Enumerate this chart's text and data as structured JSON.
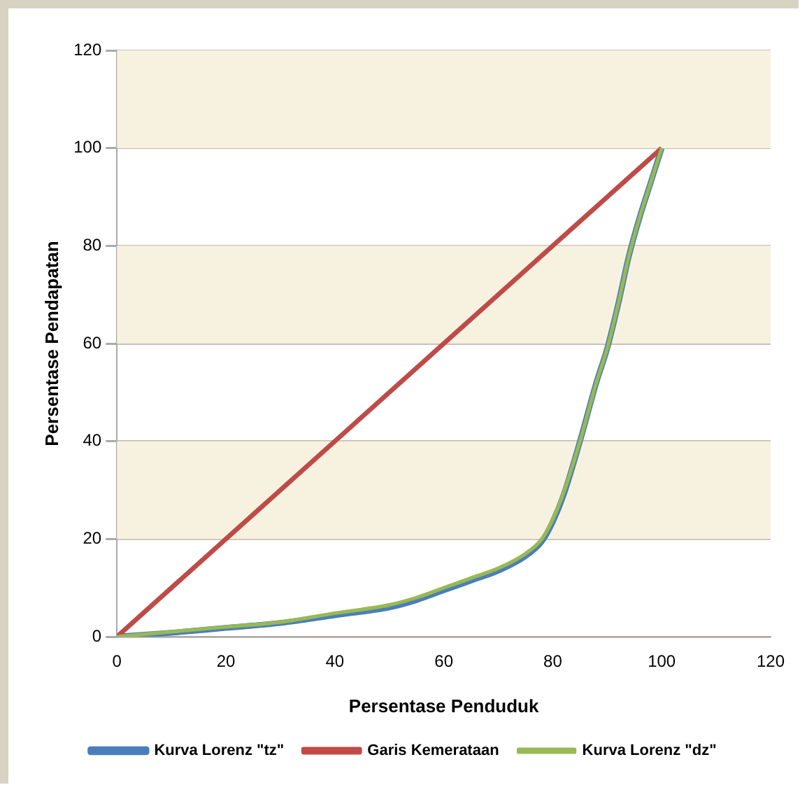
{
  "chart_data": {
    "type": "line",
    "xlabel": "Persentase Penduduk",
    "ylabel": "Persentase Pendapatan",
    "xlim": [
      0,
      120
    ],
    "xticks": [
      0,
      20,
      40,
      60,
      80,
      100,
      120
    ],
    "ylim": [
      0,
      120
    ],
    "yticks": [
      0,
      20,
      40,
      60,
      80,
      100,
      120
    ],
    "grid": "y",
    "legend": "bottom",
    "marker": "none",
    "bands": [
      {
        "axis": "y",
        "from": 20,
        "to": 40,
        "color": "#f7f2e0"
      },
      {
        "axis": "y",
        "from": 60,
        "to": 80,
        "color": "#f7f2e0"
      },
      {
        "axis": "y",
        "from": 100,
        "to": 120,
        "color": "#f7f2e0"
      }
    ],
    "series": [
      {
        "name": "Kurva Lorenz \"tz\"",
        "color": "#4a7ebb",
        "x": [
          0,
          10,
          20,
          30,
          40,
          50,
          55,
          60,
          65,
          70,
          75,
          78,
          80,
          82,
          85,
          88,
          90,
          92,
          94,
          96,
          98,
          100
        ],
        "values": [
          0,
          0.8,
          1.8,
          2.8,
          4.4,
          6,
          7.5,
          9.5,
          11.5,
          13.5,
          16.5,
          19.5,
          23.5,
          29,
          40,
          52,
          59,
          68,
          78,
          86,
          93,
          100
        ]
      },
      {
        "name": "Garis Kemerataan",
        "color": "#be4b48",
        "x": [
          0,
          100
        ],
        "values": [
          0,
          100
        ]
      },
      {
        "name": "Kurva Lorenz \"dz\"",
        "color": "#98b954",
        "x": [
          0,
          10,
          20,
          30,
          40,
          50,
          55,
          60,
          65,
          70,
          75,
          78,
          80,
          82,
          85,
          88,
          90,
          92,
          94,
          96,
          98,
          100
        ],
        "values": [
          0,
          1,
          2,
          3,
          4.8,
          6.5,
          8,
          10,
          12,
          14,
          17,
          20,
          24,
          29.5,
          40,
          52,
          59,
          68,
          78,
          86,
          93,
          100
        ]
      }
    ]
  }
}
